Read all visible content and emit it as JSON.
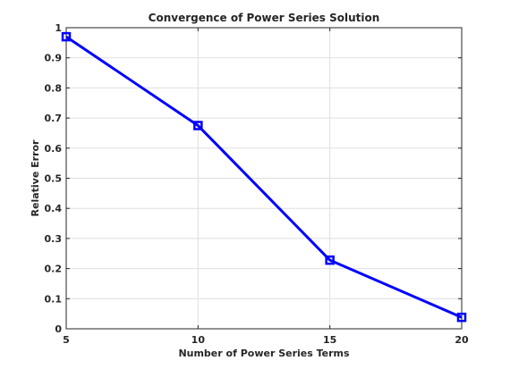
{
  "chart_data": {
    "type": "line",
    "title": "Convergence of Power Series Solution",
    "xlabel": "Number of Power Series Terms",
    "ylabel": "Relative Error",
    "x": [
      5,
      10,
      15,
      20
    ],
    "series": [
      {
        "values": [
          0.97,
          0.675,
          0.228,
          0.038
        ],
        "color": "#0000ff",
        "marker": "square"
      }
    ],
    "xlim": [
      5,
      20
    ],
    "ylim": [
      0,
      1
    ],
    "xticks": [
      "5",
      "10",
      "15",
      "20"
    ],
    "yticks": [
      "0",
      "0.1",
      "0.2",
      "0.3",
      "0.4",
      "0.5",
      "0.6",
      "0.7",
      "0.8",
      "0.9",
      "1"
    ],
    "grid": true
  }
}
